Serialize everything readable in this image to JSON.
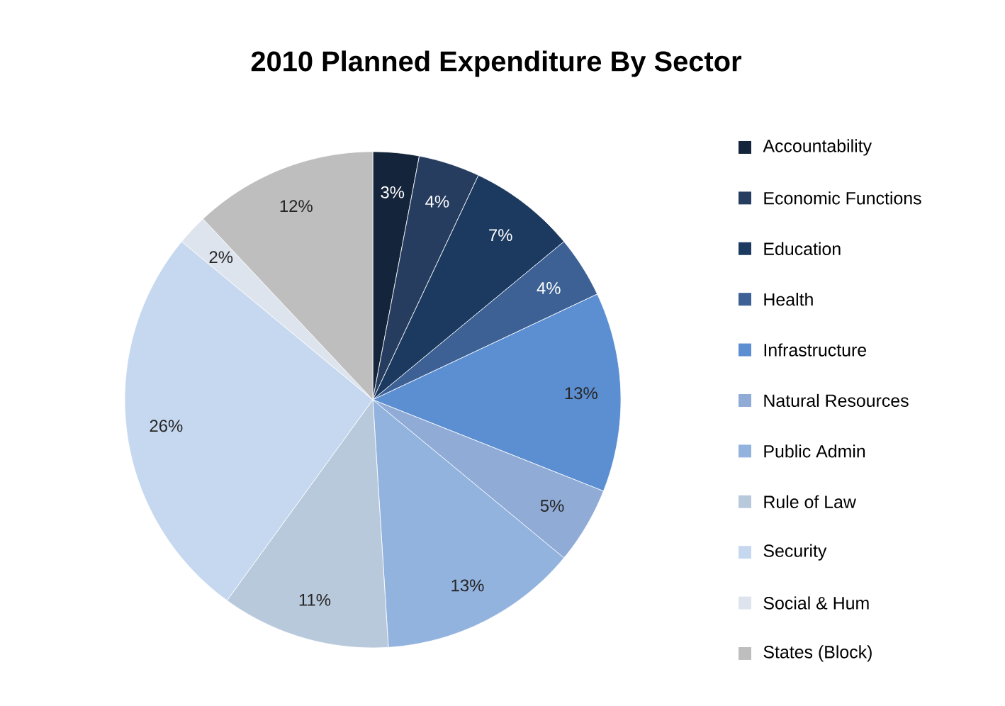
{
  "chart_data": {
    "type": "pie",
    "title": "2010 Planned Expenditure By Sector",
    "categories": [
      "Accountability",
      "Economic Functions",
      "Education",
      "Health",
      "Infrastructure",
      "Natural Resources",
      "Public Admin",
      "Rule of Law",
      "Security",
      "Social & Hum",
      "States (Block)"
    ],
    "values": [
      3,
      4,
      7,
      4,
      13,
      5,
      13,
      11,
      26,
      2,
      12
    ],
    "value_labels": [
      "3%",
      "4%",
      "7%",
      "4%",
      "13%",
      "5%",
      "13%",
      "11%",
      "26%",
      "2%",
      "12%"
    ],
    "colors": [
      "#14243a",
      "#263d60",
      "#1c3a60",
      "#3d6194",
      "#5b8fd2",
      "#8fabd6",
      "#93b3df",
      "#b9c9dc",
      "#c6d8ef",
      "#dde4ee",
      "#bebebe"
    ],
    "legend": "right"
  }
}
